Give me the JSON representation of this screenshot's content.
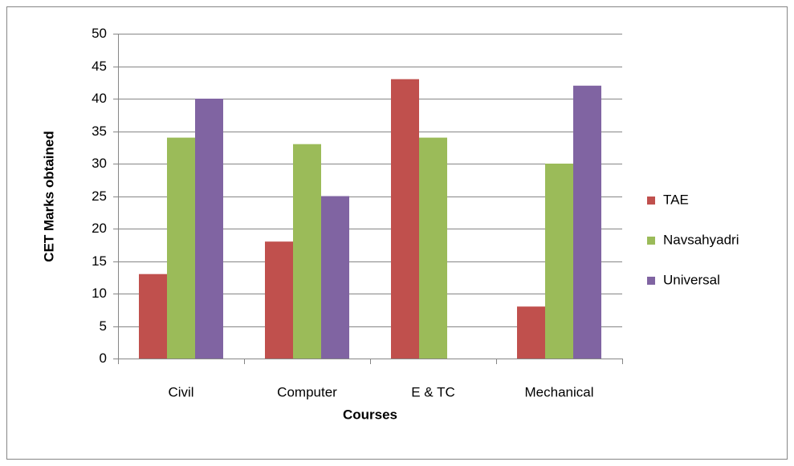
{
  "chart_data": {
    "type": "bar",
    "categories": [
      "Civil",
      "Computer",
      "E & TC",
      "Mechanical"
    ],
    "series": [
      {
        "name": "TAE",
        "color": "#c0504d",
        "values": [
          13,
          18,
          43,
          8
        ]
      },
      {
        "name": "Navsahyadri",
        "color": "#9bbb59",
        "values": [
          34,
          33,
          34,
          30
        ]
      },
      {
        "name": "Universal",
        "color": "#8064a2",
        "values": [
          40,
          25,
          null,
          42
        ]
      }
    ],
    "x_label": "Courses",
    "y_label": "CET Marks obtained",
    "ylim": [
      0,
      50
    ],
    "yticks": [
      0,
      5,
      10,
      15,
      20,
      25,
      30,
      35,
      40,
      45,
      50
    ],
    "grid": true,
    "legend": "right"
  }
}
